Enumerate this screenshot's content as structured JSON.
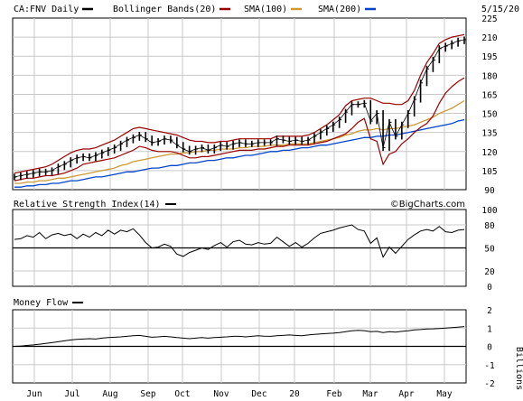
{
  "chart_data": {
    "type": "line",
    "date": "5/15/20",
    "watermark": "©BigCharts.com",
    "x_labels": [
      "Jun",
      "Jul",
      "Aug",
      "Sep",
      "Oct",
      "Nov",
      "Dec",
      "20",
      "Feb",
      "Mar",
      "Apr",
      "May"
    ],
    "price_panel": {
      "legend": [
        {
          "label": "CA:FNV Daily",
          "color": "#000000"
        },
        {
          "label": "Bollinger Bands(20)",
          "color": "#990000"
        },
        {
          "label": "SMA(100)",
          "color": "#cc9933"
        },
        {
          "label": "SMA(200)",
          "color": "#0044cc"
        }
      ],
      "ylim": [
        90,
        225
      ],
      "ticks": [
        225,
        210,
        195,
        180,
        165,
        150,
        135,
        120,
        105,
        90
      ],
      "close": [
        100,
        101,
        102,
        103,
        104,
        104,
        105,
        108,
        110,
        113,
        115,
        116,
        115,
        117,
        119,
        121,
        123,
        126,
        129,
        131,
        133,
        130,
        127,
        128,
        130,
        129,
        125,
        122,
        120,
        122,
        123,
        121,
        123,
        125,
        124,
        126,
        127,
        126,
        126,
        127,
        127,
        127,
        130,
        129,
        128,
        129,
        128,
        129,
        132,
        135,
        138,
        141,
        145,
        151,
        157,
        157,
        158,
        144,
        150,
        123,
        143,
        132,
        141,
        150,
        161,
        174,
        185,
        192,
        201,
        203,
        205,
        207,
        208
      ],
      "bollinger_upper": [
        103,
        104,
        105,
        106,
        107,
        108,
        110,
        113,
        116,
        119,
        121,
        122,
        122,
        123,
        125,
        127,
        129,
        132,
        135,
        138,
        139,
        138,
        137,
        136,
        135,
        134,
        133,
        131,
        129,
        128,
        128,
        127,
        127,
        128,
        128,
        129,
        130,
        130,
        130,
        130,
        130,
        130,
        132,
        132,
        132,
        132,
        132,
        133,
        135,
        138,
        141,
        145,
        149,
        156,
        160,
        161,
        162,
        162,
        160,
        158,
        158,
        157,
        157,
        160,
        168,
        180,
        190,
        197,
        205,
        208,
        210,
        211,
        212
      ],
      "bollinger_lower": [
        97,
        98,
        99,
        99,
        100,
        101,
        101,
        102,
        103,
        105,
        107,
        110,
        111,
        112,
        113,
        114,
        115,
        117,
        119,
        121,
        124,
        123,
        121,
        120,
        120,
        120,
        119,
        117,
        115,
        115,
        116,
        116,
        117,
        118,
        119,
        120,
        121,
        121,
        121,
        122,
        122,
        123,
        124,
        124,
        125,
        125,
        125,
        125,
        126,
        127,
        128,
        130,
        132,
        134,
        138,
        143,
        146,
        130,
        128,
        110,
        118,
        120,
        126,
        130,
        135,
        139,
        142,
        148,
        158,
        166,
        171,
        175,
        178
      ],
      "sma100": [
        95,
        95,
        96,
        96,
        97,
        97,
        98,
        99,
        99,
        100,
        101,
        102,
        103,
        104,
        105,
        106,
        107,
        109,
        110,
        112,
        113,
        114,
        115,
        116,
        117,
        118,
        118,
        119,
        119,
        120,
        120,
        121,
        121,
        122,
        122,
        122,
        123,
        123,
        124,
        124,
        124,
        125,
        125,
        125,
        126,
        126,
        126,
        126,
        127,
        128,
        129,
        130,
        131,
        133,
        134,
        136,
        137,
        137,
        138,
        137,
        138,
        138,
        139,
        140,
        141,
        143,
        145,
        147,
        150,
        152,
        154,
        157,
        160
      ],
      "sma200": [
        92,
        92,
        93,
        93,
        94,
        94,
        95,
        95,
        96,
        97,
        97,
        98,
        99,
        100,
        100,
        101,
        102,
        103,
        104,
        104,
        105,
        106,
        107,
        107,
        108,
        109,
        109,
        110,
        111,
        111,
        112,
        113,
        113,
        114,
        115,
        115,
        116,
        117,
        117,
        118,
        119,
        120,
        120,
        121,
        121,
        122,
        123,
        123,
        124,
        125,
        125,
        126,
        127,
        128,
        129,
        130,
        131,
        131,
        132,
        132,
        133,
        133,
        134,
        135,
        136,
        137,
        138,
        139,
        140,
        141,
        142,
        144,
        145
      ]
    },
    "rsi_panel": {
      "legend": "Relative Strength Index(14)",
      "ylim": [
        0,
        100
      ],
      "ticks": [
        100,
        80,
        50,
        20,
        0
      ],
      "reference_line": 50,
      "values": [
        61,
        62,
        66,
        64,
        70,
        62,
        67,
        69,
        66,
        68,
        62,
        68,
        64,
        70,
        66,
        73,
        68,
        73,
        71,
        75,
        67,
        57,
        50,
        51,
        55,
        52,
        42,
        39,
        44,
        47,
        50,
        48,
        53,
        57,
        51,
        58,
        60,
        55,
        54,
        57,
        55,
        56,
        64,
        58,
        52,
        57,
        51,
        56,
        63,
        69,
        71,
        73,
        76,
        78,
        80,
        74,
        72,
        56,
        63,
        38,
        51,
        43,
        52,
        61,
        67,
        72,
        74,
        72,
        78,
        71,
        70,
        73,
        74
      ]
    },
    "money_flow_panel": {
      "legend": "Money Flow",
      "unit": "Billions",
      "ylim": [
        -2,
        2
      ],
      "ticks": [
        2,
        1,
        0,
        -1,
        -2
      ],
      "reference_line": 0,
      "values": [
        0.0,
        0.02,
        0.05,
        0.08,
        0.12,
        0.16,
        0.2,
        0.25,
        0.3,
        0.35,
        0.38,
        0.4,
        0.42,
        0.4,
        0.45,
        0.48,
        0.5,
        0.52,
        0.55,
        0.58,
        0.6,
        0.55,
        0.5,
        0.52,
        0.55,
        0.52,
        0.48,
        0.45,
        0.42,
        0.45,
        0.48,
        0.45,
        0.48,
        0.5,
        0.52,
        0.55,
        0.55,
        0.52,
        0.55,
        0.58,
        0.56,
        0.55,
        0.58,
        0.6,
        0.62,
        0.6,
        0.58,
        0.62,
        0.65,
        0.68,
        0.7,
        0.72,
        0.75,
        0.8,
        0.85,
        0.88,
        0.86,
        0.8,
        0.82,
        0.75,
        0.8,
        0.78,
        0.82,
        0.85,
        0.9,
        0.92,
        0.95,
        0.96,
        0.98,
        1.0,
        1.02,
        1.05,
        1.08
      ]
    }
  }
}
